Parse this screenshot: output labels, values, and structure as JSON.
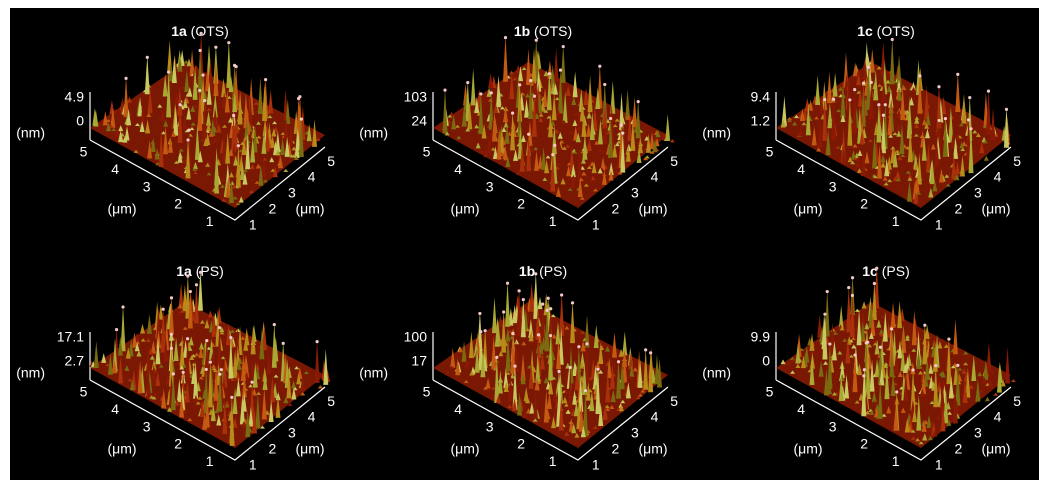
{
  "panels": [
    {
      "title_bold": "1a",
      "title_rest": " (OTS)",
      "z_labels": [
        "4.9",
        "0"
      ],
      "z_unit": "(nm)",
      "left_ticks": [
        "5",
        "4",
        "3",
        "2",
        "1"
      ],
      "left_unit": "(μm)",
      "right_ticks": [
        "1",
        "2",
        "3",
        "4",
        "5"
      ],
      "right_unit": "(μm)"
    },
    {
      "title_bold": "1b",
      "title_rest": " (OTS)",
      "z_labels": [
        "103",
        "24"
      ],
      "z_unit": "(nm)",
      "left_ticks": [
        "5",
        "4",
        "3",
        "2",
        "1"
      ],
      "left_unit": "(μm)",
      "right_ticks": [
        "1",
        "2",
        "3",
        "4",
        "5"
      ],
      "right_unit": "(μm)"
    },
    {
      "title_bold": "1c",
      "title_rest": " (OTS)",
      "z_labels": [
        "9.4",
        "1.2"
      ],
      "z_unit": "(nm)",
      "left_ticks": [
        "5",
        "4",
        "3",
        "2",
        "1"
      ],
      "left_unit": "(μm)",
      "right_ticks": [
        "1",
        "2",
        "3",
        "4",
        "5"
      ],
      "right_unit": "(μm)"
    },
    {
      "title_bold": "1a",
      "title_rest": " (PS)",
      "z_labels": [
        "17.1",
        "2.7"
      ],
      "z_unit": "(nm)",
      "left_ticks": [
        "5",
        "4",
        "3",
        "2",
        "1"
      ],
      "left_unit": "(μm)",
      "right_ticks": [
        "1",
        "2",
        "3",
        "4",
        "5"
      ],
      "right_unit": "(μm)"
    },
    {
      "title_bold": "1b",
      "title_rest": " (PS)",
      "z_labels": [
        "100",
        "17"
      ],
      "z_unit": "(nm)",
      "left_ticks": [
        "5",
        "4",
        "3",
        "2",
        "1"
      ],
      "left_unit": "(μm)",
      "right_ticks": [
        "1",
        "2",
        "3",
        "4",
        "5"
      ],
      "right_unit": "(μm)"
    },
    {
      "title_bold": "1c",
      "title_rest": " (PS)",
      "z_labels": [
        "9.9",
        "0"
      ],
      "z_unit": "(nm)",
      "left_ticks": [
        "5",
        "4",
        "3",
        "2",
        "1"
      ],
      "left_unit": "(μm)",
      "right_ticks": [
        "1",
        "2",
        "3",
        "4",
        "5"
      ],
      "right_unit": "(μm)"
    }
  ]
}
